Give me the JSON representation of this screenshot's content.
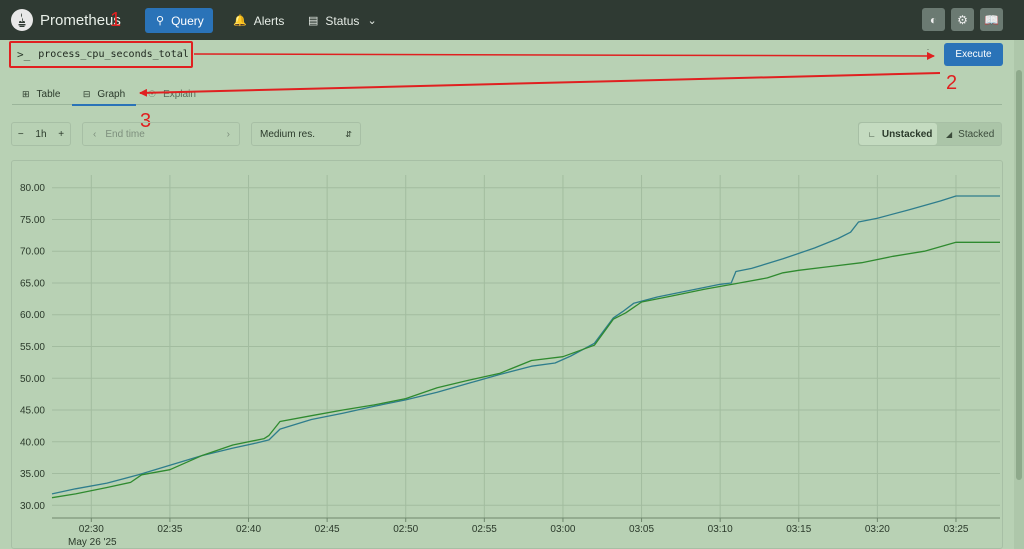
{
  "nav": {
    "brand": "Prometheus",
    "query": "Query",
    "alerts": "Alerts",
    "status": "Status"
  },
  "query": {
    "prompt": ">_",
    "expression": "process_cpu_seconds_total",
    "execute": "Execute"
  },
  "tabs": {
    "table": "Table",
    "graph": "Graph",
    "explain": "Explain"
  },
  "annotations": [
    "1",
    "2",
    "3"
  ],
  "controls": {
    "range": "1h",
    "end_time_placeholder": "End time",
    "resolution": "Medium res.",
    "unstacked": "Unstacked",
    "stacked": "Stacked"
  },
  "colors": {
    "accent": "#2a73b8",
    "annotation": "#e02020",
    "series_1": "#2e7d8c",
    "series_2": "#2f8a2f"
  },
  "chart_data": {
    "type": "line",
    "ylim": [
      28.0,
      82.0
    ],
    "yticks": [
      "30.00",
      "35.00",
      "40.00",
      "45.00",
      "50.00",
      "55.00",
      "60.00",
      "65.00",
      "70.00",
      "75.00",
      "80.00"
    ],
    "yticks_values": [
      30,
      35,
      40,
      45,
      50,
      55,
      60,
      65,
      70,
      75,
      80
    ],
    "xticks": [
      "02:30",
      "02:35",
      "02:40",
      "02:45",
      "02:50",
      "02:55",
      "03:00",
      "03:05",
      "03:10",
      "03:15",
      "03:20",
      "03:25"
    ],
    "xticks_minutes": [
      30,
      35,
      40,
      45,
      50,
      55,
      60,
      65,
      70,
      75,
      80,
      85
    ],
    "xlim_minutes": [
      27.5,
      87.8
    ],
    "date_label": "May 26 '25",
    "series": [
      {
        "x": [
          27.5,
          29,
          31,
          33,
          35,
          37,
          39,
          40.5,
          41.3,
          42,
          44,
          46,
          48,
          50,
          52,
          54,
          56,
          58,
          59.5,
          60.5,
          62,
          63.2,
          63.8,
          64.5,
          66,
          68,
          70,
          70.7,
          71,
          72,
          74,
          76,
          77.5,
          78.3,
          78.8,
          80,
          82,
          84,
          85,
          87.8
        ],
        "values": [
          31.8,
          32.6,
          33.5,
          34.8,
          36.3,
          37.8,
          39.0,
          39.8,
          40.3,
          42.0,
          43.5,
          44.5,
          45.6,
          46.6,
          47.8,
          49.2,
          50.6,
          51.9,
          52.4,
          53.5,
          55.5,
          59.5,
          60.5,
          61.8,
          62.8,
          63.8,
          64.8,
          65.0,
          66.8,
          67.3,
          68.8,
          70.5,
          72.0,
          73.0,
          74.6,
          75.2,
          76.5,
          77.9,
          78.7,
          78.7
        ]
      },
      {
        "x": [
          27.5,
          29,
          31,
          32.5,
          33.2,
          35,
          37,
          39,
          41,
          41.3,
          42,
          44,
          46,
          48,
          50,
          52,
          54,
          56,
          58,
          60,
          62,
          63.2,
          64,
          65,
          67,
          69,
          71,
          73,
          74,
          75,
          77,
          79,
          81,
          83,
          85,
          87.8
        ],
        "values": [
          31.2,
          31.8,
          32.8,
          33.6,
          34.8,
          35.6,
          37.8,
          39.5,
          40.5,
          41.0,
          43.2,
          44.1,
          45.0,
          45.8,
          46.8,
          48.5,
          49.7,
          50.8,
          52.8,
          53.4,
          55.2,
          59.3,
          60.3,
          62.0,
          63.0,
          64.0,
          64.9,
          65.8,
          66.6,
          67.0,
          67.6,
          68.2,
          69.2,
          70.0,
          71.4,
          71.4
        ]
      }
    ]
  }
}
